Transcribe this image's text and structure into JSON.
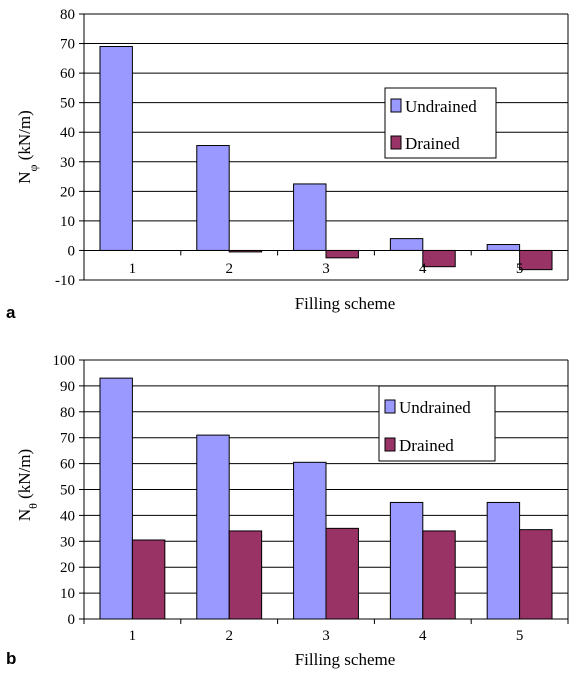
{
  "chart_data": [
    {
      "panel": "a",
      "type": "bar",
      "xlabel": "Filling scheme",
      "ylabel": "N",
      "ylabel_sub": "φ",
      "ylabel_unit": " (kN/m)",
      "categories": [
        "1",
        "2",
        "3",
        "4",
        "5"
      ],
      "ylim": [
        -10,
        80
      ],
      "yticks": [
        -10,
        0,
        10,
        20,
        30,
        40,
        50,
        60,
        70,
        80
      ],
      "grid": true,
      "legend_position": "right",
      "series": [
        {
          "name": "Undrained",
          "color": "#9999ff",
          "values": [
            69,
            35.5,
            22.5,
            4,
            2
          ]
        },
        {
          "name": "Drained",
          "color": "#993366",
          "values": [
            0,
            -0.5,
            -2.5,
            -5.5,
            -6.5
          ]
        }
      ]
    },
    {
      "panel": "b",
      "type": "bar",
      "xlabel": "Filling scheme",
      "ylabel": "N",
      "ylabel_sub": "θ",
      "ylabel_unit": " (kN/m)",
      "categories": [
        "1",
        "2",
        "3",
        "4",
        "5"
      ],
      "ylim": [
        0,
        100
      ],
      "yticks": [
        0,
        10,
        20,
        30,
        40,
        50,
        60,
        70,
        80,
        90,
        100
      ],
      "grid": true,
      "legend_position": "top-right",
      "series": [
        {
          "name": "Undrained",
          "color": "#9999ff",
          "values": [
            93,
            71,
            60.5,
            45,
            45
          ]
        },
        {
          "name": "Drained",
          "color": "#993366",
          "values": [
            30.5,
            34,
            35,
            34,
            34.5
          ]
        }
      ]
    }
  ]
}
